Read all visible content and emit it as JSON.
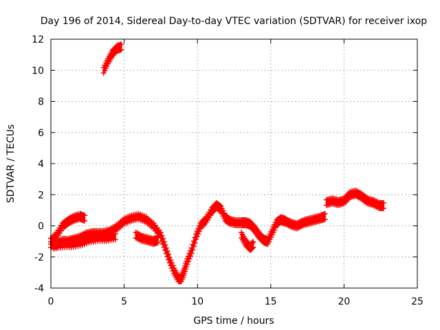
{
  "chart_data": {
    "type": "scatter",
    "title": "Day 196 of 2014, Sidereal Day-to-day VTEC variation (SDTVAR) for receiver ixop",
    "xlabel": "GPS time / hours",
    "ylabel": "SDTVAR / TECUs",
    "xlim": [
      0,
      25
    ],
    "ylim": [
      -4,
      12
    ],
    "xticks": [
      "0",
      "5",
      "10",
      "15",
      "20",
      "25"
    ],
    "yticks": [
      "-4",
      "-2",
      "0",
      "2",
      "4",
      "6",
      "8",
      "10",
      "12"
    ],
    "grid": true,
    "marker": "plus",
    "series_color": "#ff0000",
    "series": [
      {
        "name": "SDTVAR ixop",
        "segments": [
          {
            "x": [
              3.6,
              3.9,
              4.2,
              4.5,
              4.8
            ],
            "y": [
              10.0,
              10.6,
              11.1,
              11.4,
              11.5
            ]
          },
          {
            "x": [
              0.0,
              0.4,
              0.8,
              1.2,
              1.6,
              2.0,
              2.3
            ],
            "y": [
              -1.0,
              -0.6,
              0.0,
              0.3,
              0.5,
              0.6,
              0.5
            ]
          },
          {
            "x": [
              0.0,
              0.4,
              0.8,
              1.2,
              1.6,
              2.0,
              2.4,
              2.8,
              3.2,
              3.6,
              4.0,
              4.5,
              5.0,
              5.5,
              6.0,
              6.5,
              7.0,
              7.5,
              7.8,
              8.1,
              8.4,
              8.7,
              8.9,
              9.1,
              9.3,
              9.6,
              9.9,
              10.2,
              10.6,
              11.0,
              11.3,
              11.6,
              11.9,
              12.2,
              12.6,
              13.0,
              13.3,
              13.6,
              13.9,
              14.2,
              14.5,
              14.8,
              15.1,
              15.4,
              15.7,
              16.0,
              16.4,
              16.8,
              17.2,
              17.6,
              18.0,
              18.4,
              18.7
            ],
            "y": [
              -1.2,
              -1.2,
              -1.0,
              -1.0,
              -0.9,
              -0.8,
              -0.6,
              -0.5,
              -0.5,
              -0.5,
              -0.4,
              -0.1,
              0.3,
              0.5,
              0.6,
              0.4,
              0.0,
              -0.6,
              -1.4,
              -2.2,
              -2.9,
              -3.4,
              -3.4,
              -2.9,
              -2.3,
              -1.6,
              -0.7,
              0.0,
              0.4,
              1.0,
              1.3,
              1.1,
              0.5,
              0.3,
              0.2,
              0.2,
              0.2,
              0.1,
              -0.2,
              -0.6,
              -0.9,
              -1.0,
              -0.4,
              0.2,
              0.4,
              0.3,
              0.1,
              0.0,
              0.2,
              0.3,
              0.4,
              0.5,
              0.6
            ]
          },
          {
            "x": [
              0.2,
              0.8,
              1.4,
              2.0,
              2.6,
              3.2,
              3.8,
              4.4
            ],
            "y": [
              -1.3,
              -1.2,
              -1.2,
              -1.1,
              -0.9,
              -0.8,
              -0.8,
              -0.7
            ]
          },
          {
            "x": [
              5.8,
              6.2,
              6.6,
              7.0,
              7.3
            ],
            "y": [
              -0.6,
              -0.8,
              -0.9,
              -1.0,
              -0.9
            ]
          },
          {
            "x": [
              13.0,
              13.3,
              13.6,
              13.8
            ],
            "y": [
              -0.6,
              -1.1,
              -1.4,
              -1.2
            ]
          },
          {
            "x": [
              18.8,
              19.2,
              19.6,
              20.0,
              20.4,
              20.8,
              21.2,
              21.6,
              22.0,
              22.4,
              22.7
            ],
            "y": [
              1.5,
              1.6,
              1.5,
              1.6,
              2.0,
              2.1,
              1.9,
              1.6,
              1.5,
              1.3,
              1.3
            ]
          }
        ]
      }
    ]
  }
}
